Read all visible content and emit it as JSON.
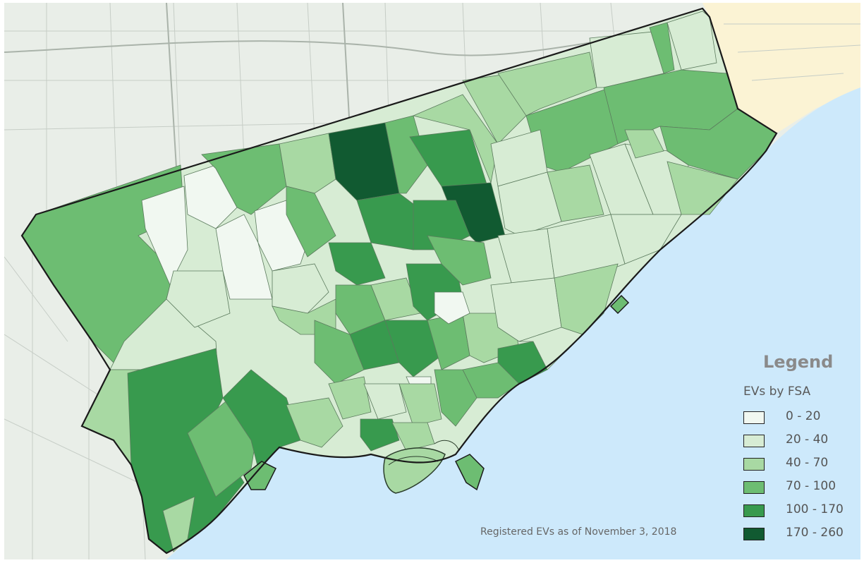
{
  "legend": {
    "title": "Legend",
    "subtitle": "EVs by FSA",
    "classes": [
      {
        "label": "0 - 20",
        "color": "#f1f8f1"
      },
      {
        "label": "20 - 40",
        "color": "#d7ecd4"
      },
      {
        "label": "40 - 70",
        "color": "#a8d9a3"
      },
      {
        "label": "70 - 100",
        "color": "#6dbd72"
      },
      {
        "label": "100 - 170",
        "color": "#389a4e"
      },
      {
        "label": "170 - 260",
        "color": "#115a31"
      }
    ]
  },
  "footnote": "Registered EVs as of November 3, 2018",
  "colors": {
    "lake": "#cde9fb",
    "surrounding_land": "#e9eee8",
    "northeast_land": "#fbf3d4",
    "boundary": "#1a1a1a"
  }
}
